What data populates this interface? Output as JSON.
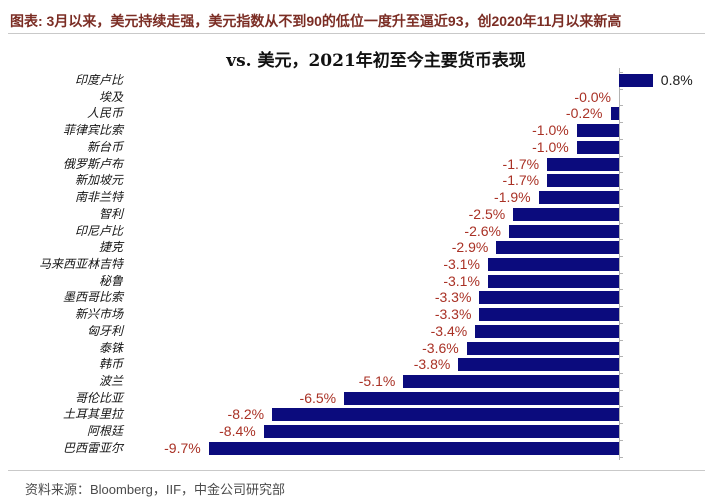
{
  "page": {
    "header": "图表: 3月以来，美元持续走强，美元指数从不到90的低位一度升至逼近93，创2020年11月以来新高",
    "source": "资料来源：Bloomberg，IIF，中金公司研究部"
  },
  "chart_data": {
    "type": "bar",
    "orientation": "horizontal",
    "title": "vs. 美元，2021年初至今主要货币表现",
    "categories": [
      "印度卢比",
      "埃及",
      "人民币",
      "菲律宾比索",
      "新台币",
      "俄罗斯卢布",
      "新加坡元",
      "南非兰特",
      "智利",
      "印尼卢比",
      "捷克",
      "马来西亚林吉特",
      "秘鲁",
      "墨西哥比索",
      "新兴市场",
      "匈牙利",
      "泰铢",
      "韩币",
      "波兰",
      "哥伦比亚",
      "土耳其里拉",
      "阿根廷",
      "巴西雷亚尔"
    ],
    "values": [
      0.8,
      -0.0,
      -0.2,
      -1.0,
      -1.0,
      -1.7,
      -1.7,
      -1.9,
      -2.5,
      -2.6,
      -2.9,
      -3.1,
      -3.1,
      -3.3,
      -3.3,
      -3.4,
      -3.6,
      -3.8,
      -5.1,
      -6.5,
      -8.2,
      -8.4,
      -9.7
    ],
    "labels": [
      "0.8%",
      "-0.0%",
      "-0.2%",
      "-1.0%",
      "-1.0%",
      "-1.7%",
      "-1.7%",
      "-1.9%",
      "-2.5%",
      "-2.6%",
      "-2.9%",
      "-3.1%",
      "-3.1%",
      "-3.3%",
      "-3.3%",
      "-3.4%",
      "-3.6%",
      "-3.8%",
      "-5.1%",
      "-6.5%",
      "-8.2%",
      "-8.4%",
      "-9.7%"
    ],
    "unit": "%",
    "xlim": [
      -10.5,
      1.0
    ],
    "bar_color": "#0b0b7d",
    "negative_label_color": "#a93125",
    "positive_label_color": "#1a1a1a",
    "axis_color": "#b3b3b3",
    "header_color": "#7b2d24",
    "legend_position": "none",
    "grid": false
  }
}
